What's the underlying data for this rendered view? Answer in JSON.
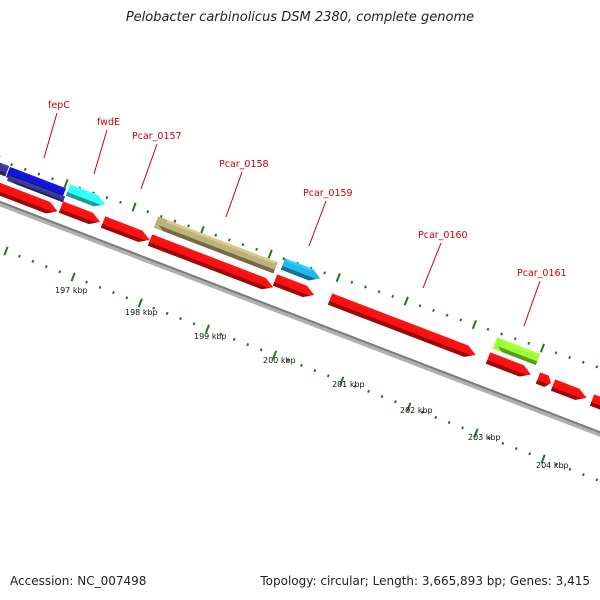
{
  "title": "Pelobacter carbinolicus DSM 2380, complete genome",
  "footer": {
    "accession": "Accession: NC_007498",
    "summary": "Topology: circular; Length: 3,665,893 bp; Genes: 3,415"
  },
  "colors": {
    "backbone": "#8c8c8c",
    "tick": "#1a7a1a",
    "label": "#cc0000",
    "gene_red": "#ff1010",
    "gene_blue": "#1414d8",
    "gene_darkblue": "#3a3a90",
    "gene_cyan": "#33ffff",
    "gene_khaki": "#bdb27a",
    "gene_skyblue": "#22b8ee",
    "gene_lime": "#99ff33"
  },
  "scale": {
    "ticks": [
      {
        "label": "197 kbp",
        "value": 197
      },
      {
        "label": "198 kbp",
        "value": 198
      },
      {
        "label": "199 kbp",
        "value": 199
      },
      {
        "label": "200 kbp",
        "value": 200
      },
      {
        "label": "201 kbp",
        "value": 201
      },
      {
        "label": "202 kbp",
        "value": 202
      },
      {
        "label": "203 kbp",
        "value": 203
      },
      {
        "label": "204 kbp",
        "value": 204
      }
    ]
  },
  "genes": [
    {
      "label": "fepC",
      "strand": "+",
      "color": "gene_blue"
    },
    {
      "label": "fwdE",
      "strand": "+",
      "color": "gene_cyan"
    },
    {
      "label": "Pcar_0157",
      "strand": "-",
      "color": "gene_red"
    },
    {
      "label": "Pcar_0158",
      "strand": "+",
      "color": "gene_khaki"
    },
    {
      "label": "Pcar_0159",
      "strand": "+",
      "color": "gene_skyblue"
    },
    {
      "label": "Pcar_0160",
      "strand": "-",
      "color": "gene_red"
    },
    {
      "label": "Pcar_0161",
      "strand": "+",
      "color": "gene_lime"
    }
  ]
}
